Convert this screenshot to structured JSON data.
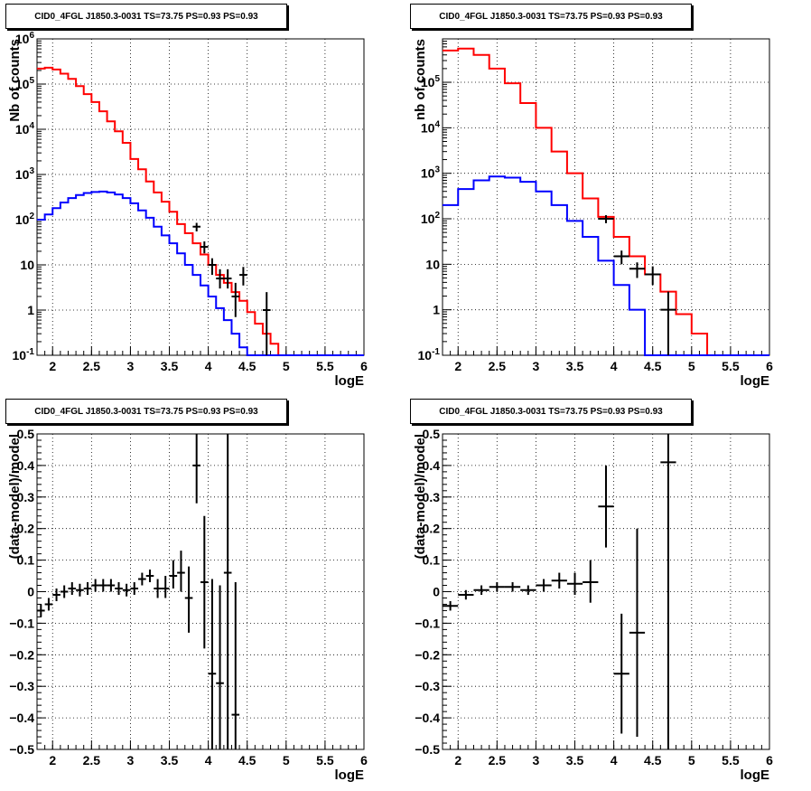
{
  "chart_data": [
    {
      "type": "line",
      "title": "CID0_4FGL J1850.3-0031 TS=73.75 PS=0.93 PS=0.93",
      "xlabel": "logE",
      "ylabel": "Nb of counts",
      "log_y": true,
      "xlim": [
        1.8,
        6.0
      ],
      "ylim": [
        0.1,
        1000000
      ],
      "grid": true,
      "x_ticks": [
        "2",
        "2.5",
        "3",
        "3.5",
        "4",
        "4.5",
        "5",
        "5.5",
        "6"
      ],
      "y_ticks": [
        "10^-1",
        "1",
        "10",
        "10^2",
        "10^3",
        "10^4",
        "10^5",
        "10^6"
      ],
      "series": [
        {
          "color": "#ff0000",
          "style": "step",
          "edges": [
            1.8,
            1.9,
            2.0,
            2.1,
            2.2,
            2.3,
            2.4,
            2.5,
            2.6,
            2.7,
            2.8,
            2.9,
            3.0,
            3.1,
            3.2,
            3.3,
            3.4,
            3.5,
            3.6,
            3.7,
            3.8,
            3.9,
            4.0,
            4.1,
            4.2,
            4.3,
            4.4,
            4.5,
            4.6,
            4.7,
            4.8,
            4.9,
            5.0,
            5.1,
            5.2,
            5.3,
            5.4,
            5.5,
            5.6,
            5.7,
            5.8,
            5.9,
            6.0
          ],
          "values": [
            220000,
            230000,
            210000,
            170000,
            130000,
            90000,
            60000,
            40000,
            25000,
            15000,
            9000,
            5000,
            2200,
            1300,
            700,
            400,
            250,
            150,
            80,
            50,
            30,
            17,
            10,
            6,
            4,
            2.5,
            1.6,
            0.9,
            0.5,
            0.3,
            0.18,
            0.1,
            0.1,
            0.1,
            0.1,
            0.1,
            0.1,
            0.1,
            0.1,
            0.1,
            0.1,
            0.1
          ]
        },
        {
          "color": "#0000ff",
          "style": "step",
          "edges": [
            1.8,
            1.9,
            2.0,
            2.1,
            2.2,
            2.3,
            2.4,
            2.5,
            2.6,
            2.7,
            2.8,
            2.9,
            3.0,
            3.1,
            3.2,
            3.3,
            3.4,
            3.5,
            3.6,
            3.7,
            3.8,
            3.9,
            4.0,
            4.1,
            4.2,
            4.3,
            4.4,
            4.5,
            4.6,
            4.7,
            4.8,
            4.9,
            5.0,
            5.1,
            5.2,
            5.3,
            5.4,
            5.5,
            5.6,
            5.7,
            5.8,
            5.9,
            6.0
          ],
          "values": [
            100,
            130,
            180,
            240,
            300,
            350,
            390,
            410,
            420,
            400,
            360,
            300,
            230,
            160,
            110,
            70,
            45,
            30,
            18,
            10,
            6,
            3.5,
            2,
            1.1,
            0.6,
            0.3,
            0.15,
            0.1,
            0.1,
            0.1,
            0.1,
            0.1,
            0.1,
            0.1,
            0.1,
            0.1,
            0.1,
            0.1,
            0.1,
            0.1,
            0.1,
            0.1
          ]
        },
        {
          "color": "#000000",
          "style": "errorbar",
          "points": [
            {
              "x": 3.85,
              "y": 70,
              "ylo": 55,
              "yhi": 85,
              "xerr": 0.05
            },
            {
              "x": 3.95,
              "y": 25,
              "ylo": 18,
              "yhi": 33,
              "xerr": 0.05
            },
            {
              "x": 4.05,
              "y": 10,
              "ylo": 6,
              "yhi": 14,
              "xerr": 0.05
            },
            {
              "x": 4.15,
              "y": 5,
              "ylo": 3,
              "yhi": 8,
              "xerr": 0.05
            },
            {
              "x": 4.25,
              "y": 5,
              "ylo": 3,
              "yhi": 8,
              "xerr": 0.05
            },
            {
              "x": 4.35,
              "y": 2,
              "ylo": 0.7,
              "yhi": 4,
              "xerr": 0.05
            },
            {
              "x": 4.45,
              "y": 6,
              "ylo": 3.5,
              "yhi": 9,
              "xerr": 0.05
            },
            {
              "x": 4.75,
              "y": 1,
              "ylo": 0.1,
              "yhi": 2.5,
              "xerr": 0.05
            }
          ]
        }
      ]
    },
    {
      "type": "line",
      "title": "CID0_4FGL J1850.3-0031 TS=73.75 PS=0.93 PS=0.93",
      "xlabel": "logE",
      "ylabel": "nb of counts",
      "log_y": true,
      "xlim": [
        1.8,
        6.0
      ],
      "ylim": [
        0.1,
        900000
      ],
      "grid": true,
      "x_ticks": [
        "2",
        "2.5",
        "3",
        "3.5",
        "4",
        "4.5",
        "5",
        "5.5",
        "6"
      ],
      "y_ticks": [
        "10^-1",
        "1",
        "10",
        "10^2",
        "10^3",
        "10^4",
        "10^5"
      ],
      "series": [
        {
          "color": "#ff0000",
          "style": "step",
          "edges": [
            1.8,
            2.0,
            2.2,
            2.4,
            2.6,
            2.8,
            3.0,
            3.2,
            3.4,
            3.6,
            3.8,
            4.0,
            4.2,
            4.4,
            4.6,
            4.8,
            5.0,
            5.2,
            5.4,
            5.6,
            5.8,
            6.0
          ],
          "values": [
            500000,
            550000,
            400000,
            200000,
            95000,
            35000,
            10000,
            3000,
            1000,
            280,
            110,
            40,
            15,
            6,
            2.5,
            0.8,
            0.3,
            0.1,
            0.1,
            0.1,
            0.1
          ]
        },
        {
          "color": "#0000ff",
          "style": "step",
          "edges": [
            1.8,
            2.0,
            2.2,
            2.4,
            2.6,
            2.8,
            3.0,
            3.2,
            3.4,
            3.6,
            3.8,
            4.0,
            4.2,
            4.4,
            4.6,
            4.8,
            5.0,
            5.2,
            5.4,
            5.6,
            5.8,
            6.0
          ],
          "values": [
            200,
            450,
            700,
            850,
            800,
            650,
            400,
            200,
            90,
            40,
            12,
            3.5,
            1,
            0.1,
            0.1,
            0.1,
            0.1,
            0.1,
            0.1,
            0.1,
            0.1
          ]
        },
        {
          "color": "#000000",
          "style": "errorbar",
          "points": [
            {
              "x": 3.9,
              "y": 100,
              "ylo": 80,
              "yhi": 120,
              "xerr": 0.1
            },
            {
              "x": 4.1,
              "y": 15,
              "ylo": 10,
              "yhi": 20,
              "xerr": 0.1
            },
            {
              "x": 4.3,
              "y": 8,
              "ylo": 5,
              "yhi": 11,
              "xerr": 0.1
            },
            {
              "x": 4.5,
              "y": 6,
              "ylo": 3.5,
              "yhi": 9,
              "xerr": 0.1
            },
            {
              "x": 4.7,
              "y": 1,
              "ylo": 0.1,
              "yhi": 2.5,
              "xerr": 0.1
            }
          ]
        }
      ]
    },
    {
      "type": "scatter",
      "title": "CID0_4FGL J1850.3-0031 TS=73.75 PS=0.93 PS=0.93",
      "xlabel": "logE",
      "ylabel": "(data-model)/model",
      "xlim": [
        1.8,
        6.0
      ],
      "ylim": [
        -0.5,
        0.5
      ],
      "grid": true,
      "x_ticks": [
        "2",
        "2.5",
        "3",
        "3.5",
        "4",
        "4.5",
        "5",
        "5.5",
        "6"
      ],
      "y_ticks": [
        "−0.5",
        "−0.4",
        "−0.3",
        "−0.2",
        "−0.1",
        "0",
        "0.1",
        "0.2",
        "0.3",
        "0.4",
        "0.5"
      ],
      "series": [
        {
          "color": "#000000",
          "style": "errorbar",
          "points": [
            {
              "x": 1.85,
              "y": -0.06,
              "ylo": -0.08,
              "yhi": -0.04,
              "xerr": 0.05
            },
            {
              "x": 1.95,
              "y": -0.04,
              "ylo": -0.06,
              "yhi": -0.02,
              "xerr": 0.05
            },
            {
              "x": 2.05,
              "y": -0.01,
              "ylo": -0.03,
              "yhi": 0.01,
              "xerr": 0.05
            },
            {
              "x": 2.15,
              "y": 0.0,
              "ylo": -0.02,
              "yhi": 0.02,
              "xerr": 0.05
            },
            {
              "x": 2.25,
              "y": 0.01,
              "ylo": -0.01,
              "yhi": 0.03,
              "xerr": 0.05
            },
            {
              "x": 2.35,
              "y": 0.005,
              "ylo": -0.015,
              "yhi": 0.025,
              "xerr": 0.05
            },
            {
              "x": 2.45,
              "y": 0.01,
              "ylo": -0.01,
              "yhi": 0.03,
              "xerr": 0.05
            },
            {
              "x": 2.55,
              "y": 0.02,
              "ylo": 0.0,
              "yhi": 0.04,
              "xerr": 0.05
            },
            {
              "x": 2.65,
              "y": 0.02,
              "ylo": 0.0,
              "yhi": 0.04,
              "xerr": 0.05
            },
            {
              "x": 2.75,
              "y": 0.02,
              "ylo": 0.0,
              "yhi": 0.04,
              "xerr": 0.05
            },
            {
              "x": 2.85,
              "y": 0.01,
              "ylo": -0.01,
              "yhi": 0.03,
              "xerr": 0.05
            },
            {
              "x": 2.95,
              "y": 0.005,
              "ylo": -0.015,
              "yhi": 0.025,
              "xerr": 0.05
            },
            {
              "x": 3.05,
              "y": 0.01,
              "ylo": -0.01,
              "yhi": 0.03,
              "xerr": 0.05
            },
            {
              "x": 3.15,
              "y": 0.04,
              "ylo": 0.02,
              "yhi": 0.06,
              "xerr": 0.05
            },
            {
              "x": 3.25,
              "y": 0.05,
              "ylo": 0.03,
              "yhi": 0.07,
              "xerr": 0.05
            },
            {
              "x": 3.35,
              "y": 0.01,
              "ylo": -0.02,
              "yhi": 0.04,
              "xerr": 0.05
            },
            {
              "x": 3.45,
              "y": 0.01,
              "ylo": -0.02,
              "yhi": 0.05,
              "xerr": 0.05
            },
            {
              "x": 3.55,
              "y": 0.05,
              "ylo": 0.01,
              "yhi": 0.1,
              "xerr": 0.05
            },
            {
              "x": 3.65,
              "y": 0.06,
              "ylo": 0.0,
              "yhi": 0.13,
              "xerr": 0.05
            },
            {
              "x": 3.75,
              "y": -0.02,
              "ylo": -0.13,
              "yhi": 0.08,
              "xerr": 0.05
            },
            {
              "x": 3.85,
              "y": 0.4,
              "ylo": 0.28,
              "yhi": 0.52,
              "xerr": 0.05
            },
            {
              "x": 3.95,
              "y": 0.03,
              "ylo": -0.18,
              "yhi": 0.24,
              "xerr": 0.05
            },
            {
              "x": 4.05,
              "y": -0.26,
              "ylo": -0.55,
              "yhi": 0.04,
              "xerr": 0.05
            },
            {
              "x": 4.15,
              "y": -0.29,
              "ylo": -0.55,
              "yhi": 0.02,
              "xerr": 0.05
            },
            {
              "x": 4.25,
              "y": 0.06,
              "ylo": -0.55,
              "yhi": 0.55,
              "xerr": 0.05
            },
            {
              "x": 4.35,
              "y": -0.39,
              "ylo": -0.55,
              "yhi": 0.03,
              "xerr": 0.05
            }
          ]
        }
      ]
    },
    {
      "type": "scatter",
      "title": "CID0_4FGL J1850.3-0031 TS=73.75 PS=0.93 PS=0.93",
      "xlabel": "logE",
      "ylabel": "(data-model)/model",
      "xlim": [
        1.8,
        6.0
      ],
      "ylim": [
        -0.5,
        0.5
      ],
      "grid": true,
      "x_ticks": [
        "2",
        "2.5",
        "3",
        "3.5",
        "4",
        "4.5",
        "5",
        "5.5",
        "6"
      ],
      "y_ticks": [
        "−0.5",
        "−0.4",
        "−0.3",
        "−0.2",
        "−0.1",
        "0",
        "0.1",
        "0.2",
        "0.3",
        "0.4",
        "0.5"
      ],
      "series": [
        {
          "color": "#000000",
          "style": "errorbar",
          "points": [
            {
              "x": 1.9,
              "y": -0.045,
              "ylo": -0.06,
              "yhi": -0.03,
              "xerr": 0.1
            },
            {
              "x": 2.1,
              "y": -0.01,
              "ylo": -0.025,
              "yhi": 0.005,
              "xerr": 0.1
            },
            {
              "x": 2.3,
              "y": 0.005,
              "ylo": -0.01,
              "yhi": 0.02,
              "xerr": 0.1
            },
            {
              "x": 2.5,
              "y": 0.015,
              "ylo": 0.0,
              "yhi": 0.03,
              "xerr": 0.1
            },
            {
              "x": 2.7,
              "y": 0.015,
              "ylo": 0.0,
              "yhi": 0.03,
              "xerr": 0.1
            },
            {
              "x": 2.9,
              "y": 0.005,
              "ylo": -0.01,
              "yhi": 0.02,
              "xerr": 0.1
            },
            {
              "x": 3.1,
              "y": 0.02,
              "ylo": 0.0,
              "yhi": 0.04,
              "xerr": 0.1
            },
            {
              "x": 3.3,
              "y": 0.035,
              "ylo": 0.01,
              "yhi": 0.06,
              "xerr": 0.1
            },
            {
              "x": 3.5,
              "y": 0.025,
              "ylo": -0.01,
              "yhi": 0.06,
              "xerr": 0.1
            },
            {
              "x": 3.7,
              "y": 0.03,
              "ylo": -0.035,
              "yhi": 0.1,
              "xerr": 0.1
            },
            {
              "x": 3.9,
              "y": 0.27,
              "ylo": 0.14,
              "yhi": 0.4,
              "xerr": 0.1
            },
            {
              "x": 4.1,
              "y": -0.26,
              "ylo": -0.45,
              "yhi": -0.07,
              "xerr": 0.1
            },
            {
              "x": 4.3,
              "y": -0.13,
              "ylo": -0.46,
              "yhi": 0.2,
              "xerr": 0.1
            },
            {
              "x": 4.7,
              "y": 0.41,
              "ylo": -0.55,
              "yhi": 0.55,
              "xerr": 0.1
            }
          ]
        }
      ]
    }
  ]
}
